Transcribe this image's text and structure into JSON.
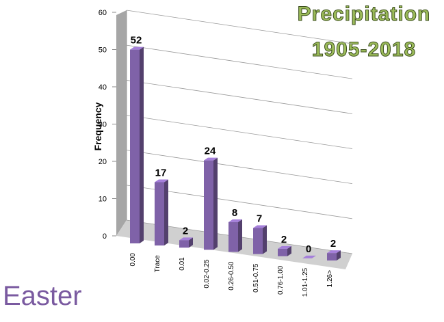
{
  "chart_data": {
    "type": "bar3d",
    "title": "Precipitation",
    "subtitle": "1905-2018",
    "label": "Easter",
    "y_label": "Frequency",
    "categories": [
      "0.00",
      "Trace",
      "0.01",
      "0.02-0.25",
      "0.26-0.50",
      "0.51-0.75",
      "0.76-1.00",
      "1.01-1.25",
      "1.26>"
    ],
    "values": [
      52,
      17,
      2,
      24,
      8,
      7,
      2,
      0,
      2
    ],
    "color": "#7f62a8",
    "ylim": [
      0,
      60
    ],
    "yticks": [
      0,
      10,
      20,
      30,
      40,
      50,
      60
    ],
    "grid": true
  }
}
